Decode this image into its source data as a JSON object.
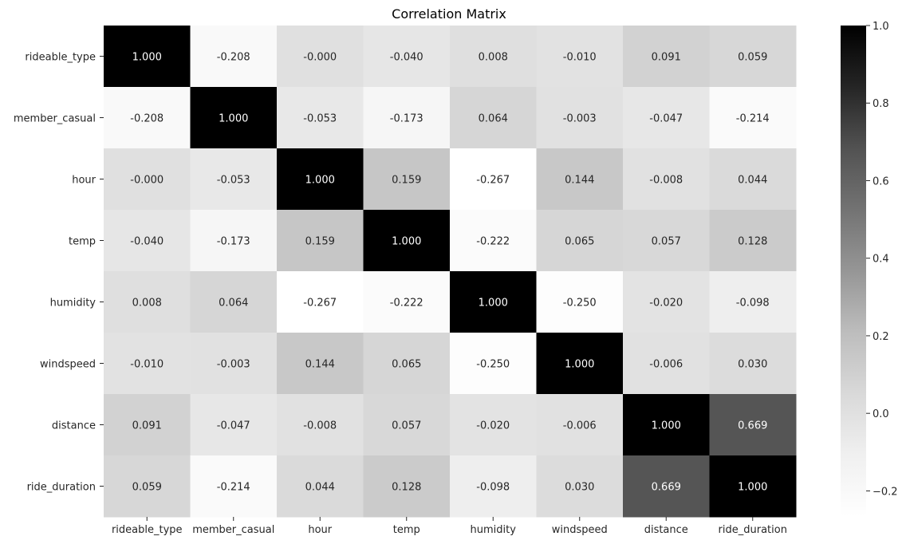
{
  "chart_data": {
    "type": "heatmap",
    "title": "Correlation Matrix",
    "xlabel": "",
    "ylabel": "",
    "rows": [
      "rideable_type",
      "member_casual",
      "hour",
      "temp",
      "humidity",
      "windspeed",
      "distance",
      "ride_duration"
    ],
    "columns": [
      "rideable_type",
      "member_casual",
      "hour",
      "temp",
      "humidity",
      "windspeed",
      "distance",
      "ride_duration"
    ],
    "values": [
      [
        1.0,
        -0.208,
        -0.0,
        -0.04,
        0.008,
        -0.01,
        0.091,
        0.059
      ],
      [
        -0.208,
        1.0,
        -0.053,
        -0.173,
        0.064,
        -0.003,
        -0.047,
        -0.214
      ],
      [
        -0.0,
        -0.053,
        1.0,
        0.159,
        -0.267,
        0.144,
        -0.008,
        0.044
      ],
      [
        -0.04,
        -0.173,
        0.159,
        1.0,
        -0.222,
        0.065,
        0.057,
        0.128
      ],
      [
        0.008,
        0.064,
        -0.267,
        -0.222,
        1.0,
        -0.25,
        -0.02,
        -0.098
      ],
      [
        -0.01,
        -0.003,
        0.144,
        0.065,
        -0.25,
        1.0,
        -0.006,
        0.03
      ],
      [
        0.091,
        -0.047,
        -0.008,
        0.057,
        -0.02,
        -0.006,
        1.0,
        0.669
      ],
      [
        0.059,
        -0.214,
        0.044,
        0.128,
        -0.098,
        0.03,
        0.669,
        1.0
      ]
    ],
    "cell_labels": [
      [
        "1.000",
        "-0.208",
        "-0.000",
        "-0.040",
        "0.008",
        "-0.010",
        "0.091",
        "0.059"
      ],
      [
        "-0.208",
        "1.000",
        "-0.053",
        "-0.173",
        "0.064",
        "-0.003",
        "-0.047",
        "-0.214"
      ],
      [
        "-0.000",
        "-0.053",
        "1.000",
        "0.159",
        "-0.267",
        "0.144",
        "-0.008",
        "0.044"
      ],
      [
        "-0.040",
        "-0.173",
        "0.159",
        "1.000",
        "-0.222",
        "0.065",
        "0.057",
        "0.128"
      ],
      [
        "0.008",
        "0.064",
        "-0.267",
        "-0.222",
        "1.000",
        "-0.250",
        "-0.020",
        "-0.098"
      ],
      [
        "-0.010",
        "-0.003",
        "0.144",
        "0.065",
        "-0.250",
        "1.000",
        "-0.006",
        "0.030"
      ],
      [
        "0.091",
        "-0.047",
        "-0.008",
        "0.057",
        "-0.020",
        "-0.006",
        "1.000",
        "0.669"
      ],
      [
        "0.059",
        "-0.214",
        "0.044",
        "0.128",
        "-0.098",
        "0.030",
        "0.669",
        "1.000"
      ]
    ],
    "colormap": "Greys",
    "color_low": "#ffffff",
    "color_high": "#000000",
    "vmin": -0.267,
    "vmax": 1.0,
    "colorbar": {
      "ticks": [
        1.0,
        0.8,
        0.6,
        0.4,
        0.2,
        0.0,
        -0.2
      ],
      "tick_labels": [
        "1.0",
        "0.8",
        "0.6",
        "0.4",
        "0.2",
        "0.0",
        "−0.2"
      ]
    },
    "legend": "colorbar-right"
  }
}
